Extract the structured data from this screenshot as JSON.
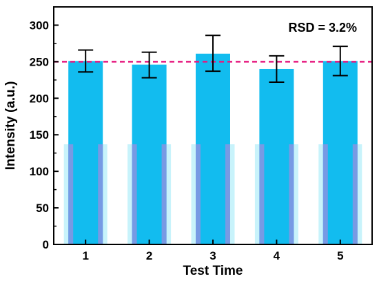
{
  "chart_data": {
    "type": "bar",
    "categories": [
      "1",
      "2",
      "3",
      "4",
      "5"
    ],
    "values": [
      251,
      246,
      261,
      240,
      251
    ],
    "errors_low": [
      236,
      228,
      237,
      222,
      231
    ],
    "errors_high": [
      266,
      263,
      286,
      258,
      271
    ],
    "xlabel": "Test Time",
    "ylabel": "Intensity (a.u.)",
    "ylim": [
      0,
      325
    ],
    "yticks": [
      0,
      50,
      100,
      150,
      200,
      250,
      300
    ],
    "reference_line": {
      "value": 250,
      "style": "dashed",
      "color": "#e6197f"
    },
    "annotation": "RSD = 3.2%",
    "bar_color": "#12bcef",
    "bar_lower_overlay_color": "#9a8fe0",
    "bar_shadow_color": "#c8f3fb",
    "bar_shadow_top": 137,
    "grid": false,
    "legend": "none"
  }
}
